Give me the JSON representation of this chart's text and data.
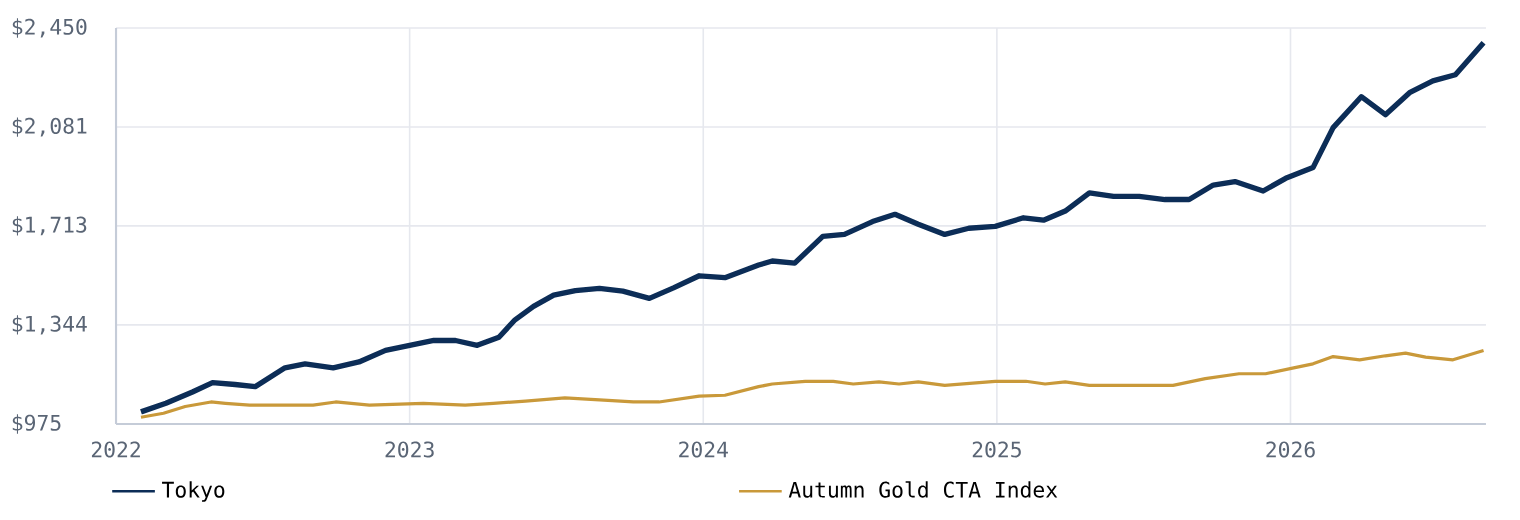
{
  "chart_data": {
    "type": "line",
    "xlim": [
      "2022",
      "2026-09"
    ],
    "xticks": [
      "2022",
      "2023",
      "2024",
      "2025",
      "2026"
    ],
    "ylim": [
      975,
      2450
    ],
    "yticks": [
      {
        "value": 975,
        "label": "$975"
      },
      {
        "value": 1344,
        "label": "$1,344"
      },
      {
        "value": 1713,
        "label": "$1,713"
      },
      {
        "value": 2081,
        "label": "$2,081"
      },
      {
        "value": 2450,
        "label": "$2,450"
      }
    ],
    "grid": true,
    "legend": "bottom",
    "marker": "none",
    "line_style": "solid",
    "series": [
      {
        "name": "Tokyo",
        "color": "#0c2d57",
        "x": [
          "2022-02-01",
          "2022-03-04",
          "2022-04-06",
          "2022-05-01",
          "2022-05-29",
          "2022-06-23",
          "2022-07-30",
          "2022-08-24",
          "2022-09-28",
          "2022-10-30",
          "2022-12-02",
          "2023-01-01",
          "2023-01-31",
          "2023-02-27",
          "2023-03-26",
          "2023-04-22",
          "2023-05-12",
          "2023-06-04",
          "2023-06-29",
          "2023-07-26",
          "2023-08-25",
          "2023-09-23",
          "2023-10-26",
          "2023-11-25",
          "2023-12-27",
          "2024-01-28",
          "2024-03-10",
          "2024-03-27",
          "2024-04-24",
          "2024-05-29",
          "2024-06-25",
          "2024-07-30",
          "2024-08-27",
          "2024-09-25",
          "2024-10-28",
          "2024-11-27",
          "2024-12-30",
          "2025-02-03",
          "2025-02-28",
          "2025-03-27",
          "2025-04-26",
          "2025-05-26",
          "2025-06-27",
          "2025-07-29",
          "2025-08-28",
          "2025-09-27",
          "2025-10-24",
          "2025-11-28",
          "2025-12-26",
          "2026-01-29",
          "2026-02-23",
          "2026-03-30",
          "2026-04-29",
          "2026-05-29",
          "2026-06-27",
          "2026-07-25",
          "2026-08-29"
        ],
        "values": [
          1020,
          1052,
          1094,
          1129,
          1122,
          1114,
          1184,
          1199,
          1184,
          1206,
          1249,
          1268,
          1286,
          1286,
          1268,
          1298,
          1363,
          1413,
          1455,
          1472,
          1480,
          1470,
          1443,
          1482,
          1527,
          1520,
          1567,
          1582,
          1574,
          1674,
          1681,
          1729,
          1756,
          1719,
          1681,
          1704,
          1711,
          1743,
          1734,
          1768,
          1836,
          1823,
          1823,
          1811,
          1811,
          1865,
          1878,
          1843,
          1890,
          1930,
          2079,
          2194,
          2127,
          2209,
          2253,
          2276,
          2395
        ]
      },
      {
        "name": "Autumn Gold CTA Index",
        "color": "#c9993a",
        "x": [
          "2022-02-01",
          "2022-03-01",
          "2022-03-28",
          "2022-04-29",
          "2022-05-17",
          "2022-06-16",
          "2022-09-03",
          "2022-10-01",
          "2022-11-12",
          "2023-01-18",
          "2023-03-11",
          "2023-04-15",
          "2023-05-25",
          "2023-07-13",
          "2023-08-25",
          "2023-10-06",
          "2023-11-07",
          "2023-12-27",
          "2024-01-28",
          "2024-03-10",
          "2024-03-27",
          "2024-05-07",
          "2024-06-11",
          "2024-07-06",
          "2024-08-07",
          "2024-09-01",
          "2024-09-25",
          "2024-10-28",
          "2024-12-02",
          "2024-12-30",
          "2025-02-06",
          "2025-03-02",
          "2025-03-27",
          "2025-04-26",
          "2025-08-08",
          "2025-09-17",
          "2025-10-29",
          "2025-12-01",
          "2026-01-05",
          "2026-01-29",
          "2026-02-23",
          "2026-03-28",
          "2026-04-29",
          "2026-05-24",
          "2026-06-18",
          "2026-07-22",
          "2026-08-29"
        ],
        "values": [
          1000,
          1015,
          1040,
          1057,
          1052,
          1045,
          1045,
          1057,
          1045,
          1052,
          1045,
          1052,
          1060,
          1072,
          1065,
          1057,
          1057,
          1079,
          1082,
          1114,
          1124,
          1134,
          1134,
          1124,
          1132,
          1124,
          1132,
          1119,
          1127,
          1134,
          1134,
          1124,
          1132,
          1119,
          1119,
          1144,
          1162,
          1162,
          1184,
          1199,
          1226,
          1214,
          1229,
          1239,
          1224,
          1214,
          1249
        ]
      }
    ]
  }
}
